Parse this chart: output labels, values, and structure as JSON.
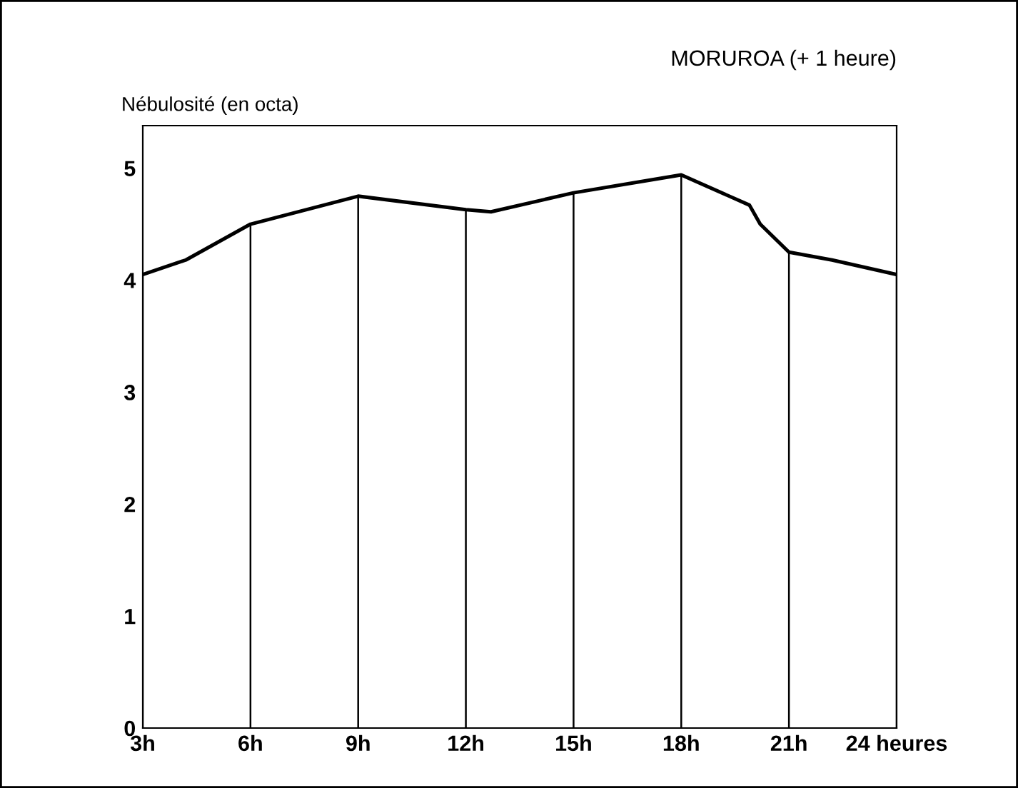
{
  "chart_data": {
    "type": "line",
    "title": "MORUROA (+ 1 heure)",
    "ylabel": "Nébulosité (en octa)",
    "x": [
      3,
      4.2,
      6,
      9,
      12,
      12.7,
      15,
      18,
      19.9,
      20.2,
      21,
      22.2,
      24
    ],
    "series": [
      {
        "color": "#000000",
        "values": [
          4.05,
          4.18,
          4.5,
          4.75,
          4.63,
          4.61,
          4.78,
          4.94,
          4.67,
          4.5,
          4.25,
          4.18,
          4.05
        ]
      }
    ],
    "xlim": [
      3,
      24
    ],
    "ylim": [
      0,
      5.38
    ],
    "xticks": [
      {
        "value": 3,
        "label": "3h"
      },
      {
        "value": 6,
        "label": "6h"
      },
      {
        "value": 9,
        "label": "9h"
      },
      {
        "value": 12,
        "label": "12h"
      },
      {
        "value": 15,
        "label": "15h"
      },
      {
        "value": 18,
        "label": "18h"
      },
      {
        "value": 21,
        "label": "21h"
      },
      {
        "value": 24,
        "label": "24 heures"
      }
    ],
    "yticks": [
      0,
      1,
      2,
      3,
      4,
      5
    ],
    "grid": "x",
    "marker": "none",
    "line_style": "solid",
    "legend": false
  }
}
